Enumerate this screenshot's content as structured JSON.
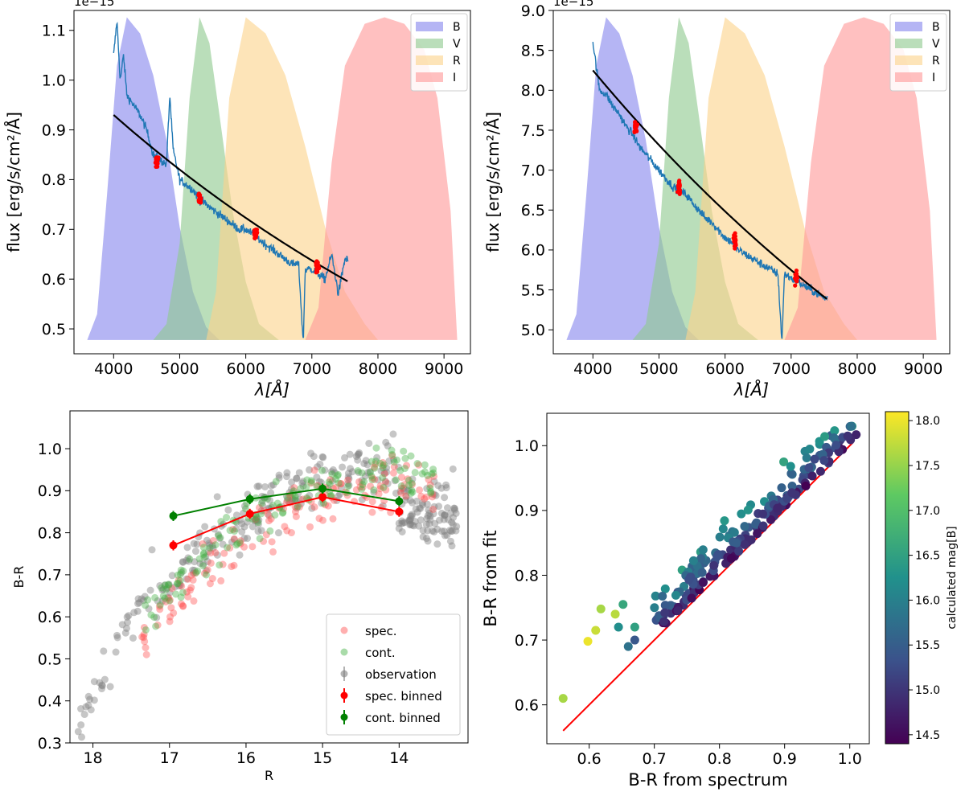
{
  "chart_data": [
    {
      "type": "area",
      "panel": "top-left",
      "xlabel": "λ[Å]",
      "ylabel": "flux [erg/s/cm²/Å]",
      "offset_text": "1e−15",
      "xlim": [
        3400,
        9400
      ],
      "ylim": [
        0.45,
        1.14
      ],
      "xticks": [
        4000,
        5000,
        6000,
        7000,
        8000,
        9000
      ],
      "yticks": [
        0.5,
        0.6,
        0.7,
        0.8,
        0.9,
        1.0,
        1.1
      ],
      "legend": {
        "position": "top-right",
        "entries": [
          "B",
          "V",
          "R",
          "I"
        ]
      },
      "filters": [
        {
          "name": "B",
          "color": "#8888ee",
          "points": [
            [
              3600,
              0
            ],
            [
              3750,
              0.08
            ],
            [
              3900,
              0.45
            ],
            [
              4050,
              0.85
            ],
            [
              4200,
              1.0
            ],
            [
              4400,
              0.95
            ],
            [
              4600,
              0.82
            ],
            [
              4800,
              0.62
            ],
            [
              5000,
              0.35
            ],
            [
              5200,
              0.15
            ],
            [
              5400,
              0.04
            ],
            [
              5600,
              0
            ]
          ]
        },
        {
          "name": "V",
          "color": "#8fc98f",
          "points": [
            [
              4600,
              0
            ],
            [
              4800,
              0.05
            ],
            [
              5000,
              0.3
            ],
            [
              5150,
              0.75
            ],
            [
              5300,
              1.0
            ],
            [
              5450,
              0.92
            ],
            [
              5600,
              0.7
            ],
            [
              5800,
              0.4
            ],
            [
              6000,
              0.18
            ],
            [
              6200,
              0.05
            ],
            [
              6500,
              0
            ]
          ]
        },
        {
          "name": "R",
          "color": "#fcd48c",
          "points": [
            [
              5400,
              0
            ],
            [
              5550,
              0.15
            ],
            [
              5750,
              0.75
            ],
            [
              6000,
              1.0
            ],
            [
              6300,
              0.95
            ],
            [
              6600,
              0.82
            ],
            [
              6900,
              0.6
            ],
            [
              7200,
              0.35
            ],
            [
              7500,
              0.15
            ],
            [
              7800,
              0.05
            ],
            [
              8000,
              0
            ]
          ]
        },
        {
          "name": "I",
          "color": "#ff9999",
          "points": [
            [
              6900,
              0
            ],
            [
              7100,
              0.1
            ],
            [
              7300,
              0.55
            ],
            [
              7500,
              0.85
            ],
            [
              7800,
              0.98
            ],
            [
              8100,
              1.0
            ],
            [
              8400,
              0.98
            ],
            [
              8700,
              0.9
            ],
            [
              8900,
              0.75
            ],
            [
              9100,
              0.4
            ],
            [
              9200,
              0
            ]
          ]
        }
      ],
      "spectrum": {
        "color": "#1f77b4",
        "x_start": 4000,
        "x_end": 7550,
        "points": [
          [
            4000,
            1.05
          ],
          [
            4050,
            1.12
          ],
          [
            4100,
            1.0
          ],
          [
            4150,
            1.05
          ],
          [
            4200,
            0.97
          ],
          [
            4300,
            0.95
          ],
          [
            4400,
            0.93
          ],
          [
            4500,
            0.9
          ],
          [
            4600,
            0.85
          ],
          [
            4700,
            0.84
          ],
          [
            4800,
            0.83
          ],
          [
            4850,
            0.97
          ],
          [
            4900,
            0.86
          ],
          [
            5000,
            0.8
          ],
          [
            5100,
            0.79
          ],
          [
            5200,
            0.78
          ],
          [
            5300,
            0.76
          ],
          [
            5400,
            0.75
          ],
          [
            5500,
            0.74
          ],
          [
            5600,
            0.73
          ],
          [
            5700,
            0.72
          ],
          [
            5800,
            0.71
          ],
          [
            5900,
            0.7
          ],
          [
            6000,
            0.7
          ],
          [
            6100,
            0.69
          ],
          [
            6200,
            0.68
          ],
          [
            6300,
            0.67
          ],
          [
            6400,
            0.66
          ],
          [
            6500,
            0.65
          ],
          [
            6600,
            0.64
          ],
          [
            6700,
            0.63
          ],
          [
            6800,
            0.63
          ],
          [
            6870,
            0.47
          ],
          [
            6900,
            0.62
          ],
          [
            7000,
            0.62
          ],
          [
            7100,
            0.61
          ],
          [
            7200,
            0.6
          ],
          [
            7300,
            0.65
          ],
          [
            7400,
            0.57
          ],
          [
            7500,
            0.64
          ]
        ]
      },
      "fit": {
        "color": "#000000",
        "x_start": 4000,
        "x_end": 7550,
        "y_start": 0.93,
        "y_end": 0.595
      },
      "red_points": {
        "color": "#ff0000",
        "centers": [
          [
            4650,
            0.835
          ],
          [
            5300,
            0.76
          ],
          [
            6150,
            0.69
          ],
          [
            7080,
            0.625
          ]
        ]
      }
    },
    {
      "type": "area",
      "panel": "top-right",
      "xlabel": "λ[Å]",
      "ylabel": "flux [erg/s/cm²/Å]",
      "offset_text": "1e−15",
      "xlim": [
        3400,
        9400
      ],
      "ylim": [
        4.7,
        9.0
      ],
      "xticks": [
        4000,
        5000,
        6000,
        7000,
        8000,
        9000
      ],
      "yticks": [
        5.0,
        5.5,
        6.0,
        6.5,
        7.0,
        7.5,
        8.0,
        8.5,
        9.0
      ],
      "legend": {
        "position": "top-right",
        "entries": [
          "B",
          "V",
          "R",
          "I"
        ]
      },
      "spectrum": {
        "color": "#1f77b4",
        "x_start": 4000,
        "x_end": 7550,
        "points": [
          [
            4000,
            8.6
          ],
          [
            4050,
            8.3
          ],
          [
            4100,
            8.0
          ],
          [
            4200,
            7.95
          ],
          [
            4300,
            7.8
          ],
          [
            4400,
            7.7
          ],
          [
            4500,
            7.55
          ],
          [
            4600,
            7.45
          ],
          [
            4700,
            7.3
          ],
          [
            4800,
            7.2
          ],
          [
            4900,
            7.1
          ],
          [
            5000,
            7.0
          ],
          [
            5100,
            6.9
          ],
          [
            5200,
            6.8
          ],
          [
            5300,
            6.75
          ],
          [
            5400,
            6.7
          ],
          [
            5500,
            6.6
          ],
          [
            5600,
            6.5
          ],
          [
            5700,
            6.4
          ],
          [
            5800,
            6.35
          ],
          [
            5900,
            6.25
          ],
          [
            6000,
            6.15
          ],
          [
            6100,
            6.1
          ],
          [
            6200,
            6.0
          ],
          [
            6300,
            5.95
          ],
          [
            6400,
            5.9
          ],
          [
            6500,
            5.85
          ],
          [
            6600,
            5.8
          ],
          [
            6700,
            5.75
          ],
          [
            6800,
            5.7
          ],
          [
            6860,
            4.85
          ],
          [
            6900,
            5.7
          ],
          [
            7000,
            5.65
          ],
          [
            7100,
            5.6
          ],
          [
            7200,
            5.55
          ],
          [
            7300,
            5.5
          ],
          [
            7400,
            5.45
          ],
          [
            7500,
            5.4
          ]
        ]
      },
      "fit": {
        "color": "#000000",
        "x_start": 4000,
        "x_end": 7550,
        "y_start": 8.25,
        "y_end": 5.38
      },
      "red_points": {
        "color": "#ff0000",
        "centers": [
          [
            4650,
            7.55
          ],
          [
            5300,
            6.8
          ],
          [
            6150,
            6.1
          ],
          [
            7080,
            5.65
          ]
        ]
      }
    },
    {
      "type": "scatter",
      "panel": "bottom-left",
      "xlabel": "R",
      "ylabel": "B-R",
      "xlim": [
        18.3,
        13.1
      ],
      "ylim": [
        0.3,
        1.09
      ],
      "xticks": [
        18,
        17,
        16,
        15,
        14
      ],
      "yticks": [
        0.3,
        0.4,
        0.5,
        0.6,
        0.7,
        0.8,
        0.9,
        1.0
      ],
      "legend": {
        "position": "bottom-right",
        "entries": [
          "spec.",
          "cont.",
          "observation",
          "spec. binned",
          "cont. binned"
        ]
      },
      "series": [
        {
          "name": "spec. binned",
          "color": "#ff0000",
          "x": [
            16.95,
            15.95,
            15.0,
            14.0
          ],
          "y": [
            0.77,
            0.845,
            0.885,
            0.85
          ]
        },
        {
          "name": "cont. binned",
          "color": "#008000",
          "x": [
            16.95,
            15.95,
            15.0,
            14.0
          ],
          "y": [
            0.84,
            0.88,
            0.905,
            0.875
          ]
        }
      ]
    },
    {
      "type": "scatter",
      "panel": "bottom-right",
      "xlabel": "B-R from spectrum",
      "ylabel": "B-R from fit",
      "xlim": [
        0.535,
        1.03
      ],
      "ylim": [
        0.54,
        1.05
      ],
      "xticks": [
        0.6,
        0.7,
        0.8,
        0.9,
        1.0
      ],
      "yticks": [
        0.6,
        0.7,
        0.8,
        0.9,
        1.0
      ],
      "identity_line": {
        "color": "#ff0000",
        "x": [
          0.56,
          1.005
        ],
        "y": [
          0.56,
          1.005
        ]
      },
      "colorbar": {
        "label": "calculated mag[B]",
        "range": [
          14.4,
          18.1
        ],
        "ticks": [
          14.5,
          15.0,
          15.5,
          16.0,
          16.5,
          17.0,
          17.5,
          18.0
        ]
      }
    }
  ]
}
